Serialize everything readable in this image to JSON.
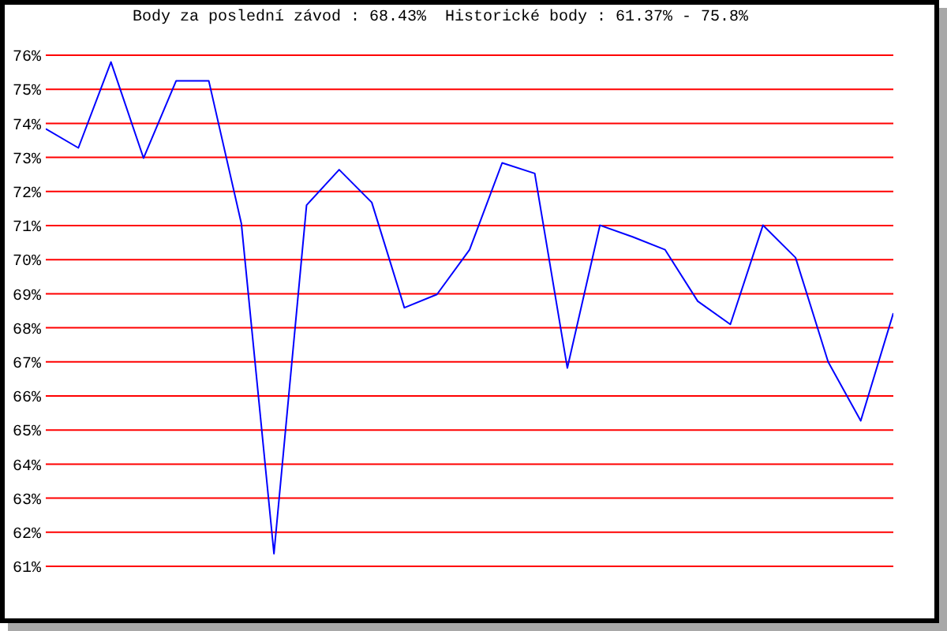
{
  "chart_data": {
    "type": "line",
    "title": "Body za poslední závod : 68.43%  Historické body : 61.37% - 75.8%",
    "categories": [
      null,
      null,
      null,
      null,
      null,
      null,
      null,
      null,
      null,
      null,
      null,
      null,
      null,
      null,
      null,
      null,
      null,
      null,
      null,
      null,
      null,
      null,
      null,
      null,
      null,
      null,
      null
    ],
    "values": [
      73.84,
      73.28,
      75.8,
      72.98,
      75.25,
      75.25,
      71.06,
      61.37,
      71.6,
      72.64,
      71.68,
      68.59,
      68.98,
      70.29,
      72.84,
      72.53,
      66.82,
      71.01,
      70.67,
      70.29,
      68.78,
      68.1,
      71.01,
      70.06,
      67.0,
      65.27,
      68.43
    ],
    "color": "#0000ff",
    "ylim": [
      61,
      76
    ],
    "yticks": [
      {
        "value": 61,
        "label": "61%"
      },
      {
        "value": 62,
        "label": "62%"
      },
      {
        "value": 63,
        "label": "63%"
      },
      {
        "value": 64,
        "label": "64%"
      },
      {
        "value": 65,
        "label": "65%"
      },
      {
        "value": 66,
        "label": "66%"
      },
      {
        "value": 67,
        "label": "67%"
      },
      {
        "value": 68,
        "label": "68%"
      },
      {
        "value": 69,
        "label": "69%"
      },
      {
        "value": 70,
        "label": "70%"
      },
      {
        "value": 71,
        "label": "71%"
      },
      {
        "value": 72,
        "label": "72%"
      },
      {
        "value": 73,
        "label": "73%"
      },
      {
        "value": 74,
        "label": "74%"
      },
      {
        "value": 75,
        "label": "75%"
      },
      {
        "value": 76,
        "label": "76%"
      }
    ],
    "grid": "y"
  }
}
